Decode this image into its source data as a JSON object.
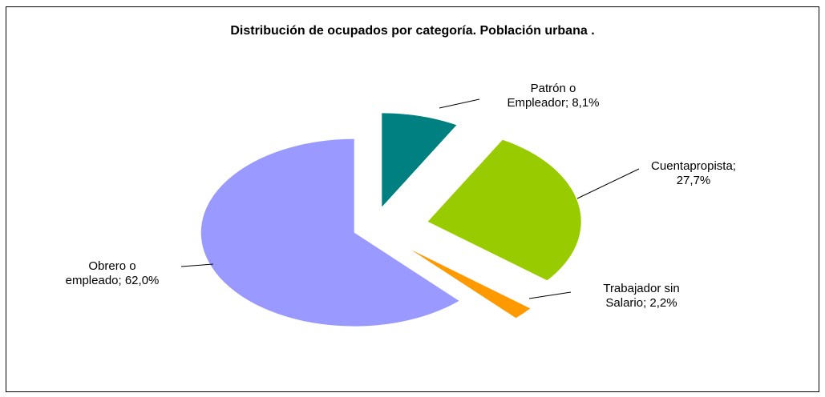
{
  "chart_data": {
    "type": "pie",
    "title": "Distribución de ocupados por categoría. Población urbana .",
    "labels": [
      "Patrón o\nEmpleador; 8,1%",
      "Cuentapropista;\n27,7%",
      "Trabajador sin\nSalario; 2,2%",
      "Obrero o\nempleado; 62,0%"
    ],
    "values": [
      8.1,
      27.7,
      2.2,
      62.0
    ],
    "colors": [
      "#008080",
      "#99cc00",
      "#ff9900",
      "#9999ff"
    ]
  }
}
